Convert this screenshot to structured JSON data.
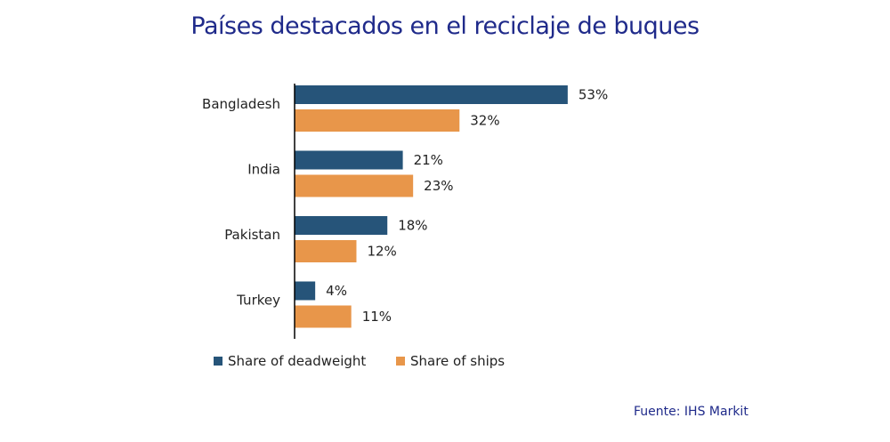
{
  "chart_data": {
    "type": "bar",
    "orientation": "horizontal",
    "title": "Países destacados en el reciclaje de buques",
    "categories": [
      "Bangladesh",
      "India",
      "Pakistan",
      "Turkey"
    ],
    "series": [
      {
        "name": "Share of deadweight",
        "values": [
          53,
          21,
          18,
          4
        ],
        "color": "#265479"
      },
      {
        "name": "Share of ships",
        "values": [
          32,
          23,
          12,
          11
        ],
        "color": "#E8964A"
      }
    ],
    "value_suffix": "%",
    "xlim": [
      0,
      60
    ],
    "grid": false,
    "legend": "bottom-left",
    "source": "Fuente:  IHS Markit"
  }
}
